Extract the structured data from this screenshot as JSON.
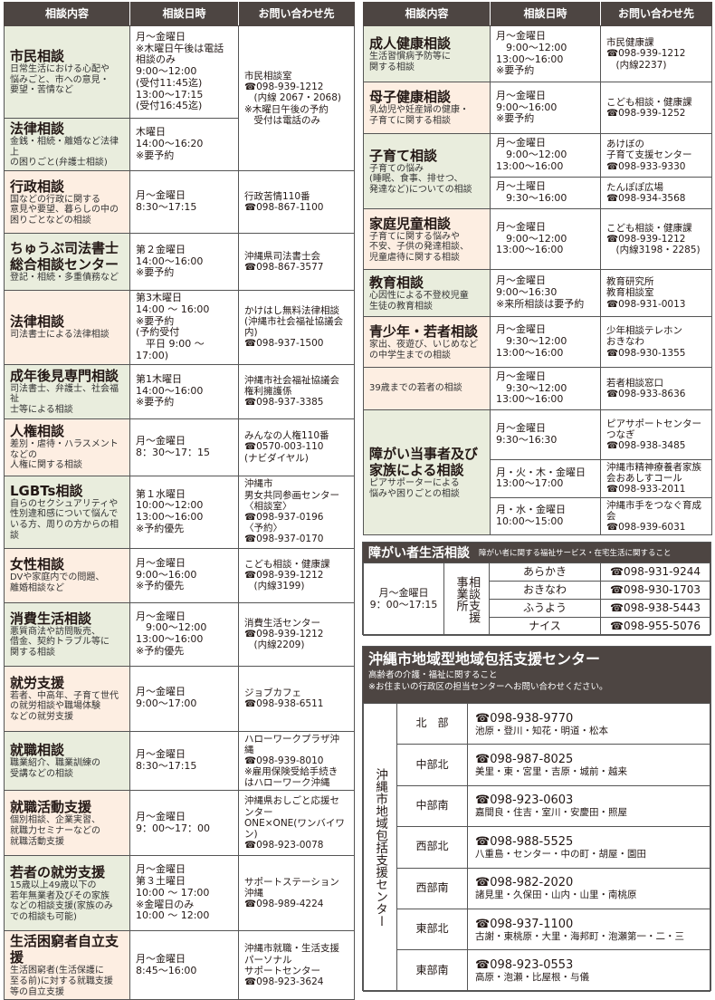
{
  "left": {
    "header": [
      "相談内容",
      "相談日時",
      "お問い合わせ先"
    ],
    "rows": [
      {
        "title": "市民相談",
        "desc": "日常生活における心配や\n悩みごと、市への意見・\n要望・苦情など",
        "color": "green",
        "subs": [
          {
            "schedule": "月～金曜日\n※木曜日午後は電話相談のみ\n9:00～12:00\n(受付11:45迄)\n13:00～17:15\n(受付16:45迄)",
            "contact": "市民相談室\n☎098-939-1212\n　(内線 2067・2068)\n※木曜日午後の予約\n　受付は電話のみ"
          }
        ]
      },
      {
        "title": "法律相談",
        "desc": "金銭・相続・離婚など法律上\nの困りごと(弁護士相談)",
        "color": "green",
        "subs": [
          {
            "schedule": "木曜日\n14:00～16:20\n※要予約"
          }
        ]
      },
      {
        "title": "行政相談",
        "desc": "国などの行政に関する\n意見や要望、暮らしの中の\n困りごとなどの相談",
        "color": "peach",
        "subs": [
          {
            "schedule": "月～金曜日\n8:30～17:15",
            "contact": "行政苦情110番\n☎098-867-1100"
          }
        ]
      },
      {
        "title": "ちゅうぶ司法書士\n総合相談センター",
        "desc": "登記・相続・多重債務など",
        "color": "green",
        "subs": [
          {
            "schedule": "第２金曜日\n14:00～16:00\n※要予約",
            "contact": "沖縄県司法書士会\n☎098-867-3577"
          }
        ]
      },
      {
        "title": "法律相談",
        "desc": "司法書士による法律相談",
        "color": "peach",
        "subs": [
          {
            "schedule": "第3木曜日\n14:00 ～ 16:00\n※要予約\n(予約受付\n　平日 9:00 ～ 17:00)",
            "contact": "かけはし無料法律相談\n(沖縄市社会福祉協議会内)\n☎098-937-1500"
          }
        ]
      },
      {
        "title": "成年後見専門相談",
        "desc": "司法書士、弁護士、社会福祉\n士等による相談",
        "color": "green",
        "subs": [
          {
            "schedule": "第1木曜日\n14:00～16:00\n※要予約",
            "contact": "沖縄市社会福祉協議会\n権利擁護係\n☎098-937-3385"
          }
        ]
      },
      {
        "title": "人権相談",
        "desc": "差別・虐待・ハラスメントなどの\n人権に関する相談",
        "color": "peach",
        "subs": [
          {
            "schedule": "月～金曜日\n8：30～17：15",
            "contact": "みんなの人権110番\n☎0570-003-110\n(ナビダイヤル)"
          }
        ]
      },
      {
        "title": "LGBTs相談",
        "desc": "自らのセクシュアリティや\n性別違和感について悩んで\nいる方、周りの方からの相談",
        "color": "green",
        "subs": [
          {
            "schedule": "第１水曜日\n10:00～12:00\n13:00～16:00\n※予約優先",
            "contact": "沖縄市\n男女共同参画センター\n〈相談室〉\n☎098-937-0196\n〈予約〉\n☎098-937-0170"
          }
        ]
      },
      {
        "title": "女性相談",
        "desc": "DVや家庭内での問題、\n離婚相談など",
        "color": "peach",
        "subs": [
          {
            "schedule": "月～金曜日\n9:00～16:00\n※予約優先",
            "contact": "こども相談・健康課\n☎098-939-1212\n　(内線3199)"
          }
        ]
      },
      {
        "title": "消費生活相談",
        "desc": "悪質商法や訪問販売、\n借金、契約トラブル等に\n関する相談",
        "color": "green",
        "subs": [
          {
            "schedule": "月～金曜日\n　9:00～12:00\n13:00～16:00\n※予約優先",
            "contact": "消費生活センター\n☎098-939-1212\n　(内線2209)"
          }
        ]
      },
      {
        "title": "就労支援",
        "desc": "若者、中高年、子育て世代\nの就労相談や職場体験\nなどの就労支援",
        "color": "peach",
        "subs": [
          {
            "schedule": "月～金曜日\n9:00～17:00",
            "contact": "ジョブカフェ\n☎098-938-6511"
          }
        ]
      },
      {
        "title": "就職相談",
        "desc": "職業紹介、職業訓練の\n受講などの相談",
        "color": "green",
        "subs": [
          {
            "schedule": "月～金曜日\n8:30～17:15",
            "contact": "ハローワークプラザ沖縄\n☎098-939-8010\n※雇用保険受給手続き\nはハローワーク沖縄"
          }
        ]
      },
      {
        "title": "就職活動支援",
        "desc": "個別相談、企業実習、\n就職力セミナーなどの\n就職活動支援",
        "color": "peach",
        "subs": [
          {
            "schedule": "月～金曜日\n9：00～17：00",
            "contact": "沖縄県おしごと応援センター\nONE×ONE(ワンバイワン)\n☎098-923-0078"
          }
        ]
      },
      {
        "title": "若者の就労支援",
        "desc": "15歳以上49歳以下の\n若年無業者及びその家族\nなどの相談支援(家族のみ\nでの相談も可能)",
        "color": "green",
        "subs": [
          {
            "schedule": "月～金曜日\n第３土曜日\n10:00 ～ 17:00\n※金曜日のみ\n10:00 ～ 12:00",
            "contact": "サポートステーション\n沖縄\n☎098-989-4224"
          }
        ]
      },
      {
        "title": "生活困窮者自立支援",
        "desc": "生活困窮者(生活保護に\n至る前)に対する就職支援\n等の自立支援",
        "color": "peach",
        "subs": [
          {
            "schedule": "月～金曜日\n8:45～16:00",
            "contact": "沖縄市就職・生活支援\nパーソナル\nサポートセンター\n☎098-923-3624"
          }
        ]
      }
    ]
  },
  "right": {
    "header": [
      "相談内容",
      "相談日時",
      "お問い合わせ先"
    ],
    "rows": [
      {
        "title": "成人健康相談",
        "desc": "生活習慣病予防等に\n関する相談",
        "color": "green",
        "subs": [
          {
            "schedule": "月～金曜日\n　9:00～12:00\n13:00～16:00\n※要予約",
            "contact": "市民健康課\n☎098-939-1212\n　(内線2237)"
          }
        ]
      },
      {
        "title": "母子健康相談",
        "desc": "乳幼児や妊産婦の健康・\n子育てに関する相談",
        "color": "peach",
        "subs": [
          {
            "schedule": "月～金曜日\n9:00～16:00\n※要予約",
            "contact": "こども相談・健康課\n☎098-939-1252"
          }
        ]
      },
      {
        "title": "子育て相談",
        "desc": "子育ての悩み\n(睡眠、食事、排せつ、\n発達など)についての相談",
        "color": "green",
        "subs": [
          {
            "schedule": "月～金曜日\n　9:00～12:00\n13:00～16:00",
            "contact": "あけぼの\n子育て支援センター\n☎098-933-9330"
          },
          {
            "schedule": "月～土曜日\n　9:30～16:00",
            "contact": "たんぽぽ広場\n☎098-934-3568"
          }
        ]
      },
      {
        "title": "家庭児童相談",
        "desc": "子育てに関する悩みや\n不安、子供の発達相談、\n児童虐待に関する相談",
        "color": "peach",
        "subs": [
          {
            "schedule": "月～金曜日\n　9:00～12:00\n13:00～16:00",
            "contact": "こども相談・健康課\n☎098-939-1212\n　(内線3198・2285)"
          }
        ]
      },
      {
        "title": "教育相談",
        "desc": "心因性による不登校児童\n生徒の教育相談",
        "color": "green",
        "subs": [
          {
            "schedule": "月～金曜日\n9:00～16:30\n※来所相談は要予約",
            "contact": "教育研究所\n教育相談室\n☎098-931-0013"
          }
        ]
      },
      {
        "title": "青少年・若者相談",
        "desc": "家出、夜遊び、いじめなど\nの中学生までの相談",
        "color": "peach",
        "subs": [
          {
            "schedule": "月～金曜日\n　9:30～12:00\n13:00～16:00",
            "contact": "少年相談テレホン\nおきなわ\n☎098-930-1355"
          },
          {
            "desc": "39歳までの若者の相談",
            "schedule": "月～金曜日\n　9:30～12:00\n13:00～16:00",
            "contact": "若者相談窓口\n☎098-933-8636"
          }
        ]
      },
      {
        "title": "障がい当事者及び\n家族による相談",
        "desc": "ピアサポーターによる\n悩みや困りごとの相談",
        "color": "green",
        "subs": [
          {
            "schedule": "月～金曜日\n9:30～16:30",
            "contact": "ピアサポートセンター\nつなぎ\n☎098-938-3485"
          },
          {
            "schedule": "月・火・木・金曜日\n13:00～17:00",
            "contact": "沖縄市精神療養者家族\n会おあしすコール\n☎098-933-2011"
          },
          {
            "schedule": "月・水・金曜日\n10:00～15:00",
            "contact": "沖縄市手をつなぐ育成会\n☎098-939-6031"
          }
        ]
      }
    ]
  },
  "shogai": {
    "title": "障がい者生活相談",
    "subtitle": "障がい者に関する福祉サービス・在宅生活に関すること",
    "schedule": "月～金曜日\n9：00～17:15",
    "label": "相談支援\n事業所",
    "offices": [
      {
        "name": "あらかき",
        "phone": "☎098-931-9244"
      },
      {
        "name": "おきなわ",
        "phone": "☎098-930-1703"
      },
      {
        "name": "ふうよう",
        "phone": "☎098-938-5443"
      },
      {
        "name": "ナイス",
        "phone": "☎098-955-5076"
      }
    ]
  },
  "houkatsu": {
    "title": "沖縄市地域型地域包括支援センター",
    "line1": "高齢者の介護・福祉に関すること",
    "line2": "※お住まいの行政区の担当センターへお問い合わせください。",
    "side_label": "沖縄市地域包括支援センター",
    "areas": [
      {
        "name": "北　部",
        "phone": "☎098-938-9770",
        "districts": "池原・登川・知花・明道・松本"
      },
      {
        "name": "中部北",
        "phone": "☎098-987-8025",
        "districts": "美里・東・宮里・吉原・城前・越来"
      },
      {
        "name": "中部南",
        "phone": "☎098-923-0603",
        "districts": "嘉間良・住吉・室川・安慶田・照屋"
      },
      {
        "name": "西部北",
        "phone": "☎098-988-5525",
        "districts": "八重島・センター・中の町・胡屋・園田"
      },
      {
        "name": "西部南",
        "phone": "☎098-982-2020",
        "districts": "諸見里・久保田・山内・山里・南桃原"
      },
      {
        "name": "東部北",
        "phone": "☎098-937-1100",
        "districts": "古謝・東桃原・大里・海邦町・泡瀬第一・二・三"
      },
      {
        "name": "東部南",
        "phone": "☎098-923-0553",
        "districts": "高原・泡瀬・比屋根・与儀"
      }
    ]
  },
  "colors": {
    "header": "#4d4542",
    "green": "#e9eddd",
    "peach": "#fdeee2"
  }
}
